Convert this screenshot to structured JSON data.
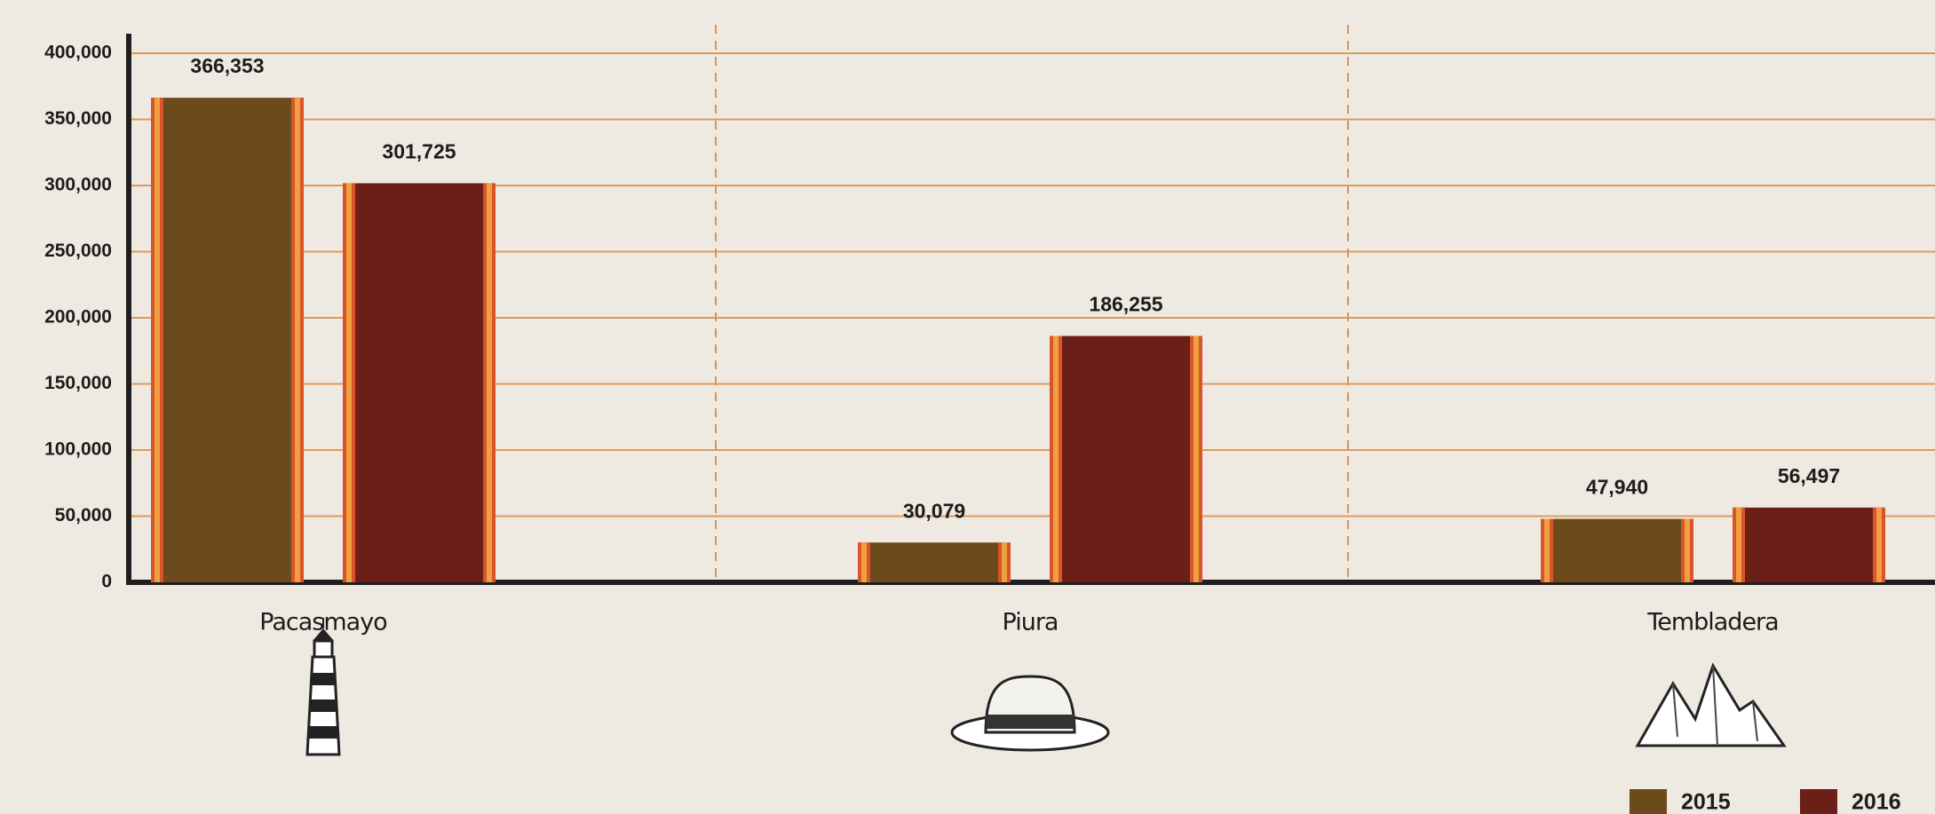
{
  "chart_data": {
    "type": "bar",
    "categories": [
      "Pacasmayo",
      "Piura",
      "Tembladera"
    ],
    "series": [
      {
        "name": "2015",
        "color": "#6b4a1c",
        "values": [
          366353,
          30079,
          47940
        ],
        "value_labels": [
          "366,353",
          "30,079",
          "47,940"
        ]
      },
      {
        "name": "2016",
        "color": "#6b1f17",
        "values": [
          301725,
          186255,
          56497
        ],
        "value_labels": [
          "301,725",
          "186,255",
          "56,497"
        ]
      }
    ],
    "ylim": [
      0,
      400000
    ],
    "yticks": [
      0,
      {
        "value": 50000,
        "label": "50,000"
      },
      {
        "value": 100000,
        "label": "100,000"
      },
      {
        "value": 150000,
        "label": "150,000"
      },
      {
        "value": 200000,
        "label": "200,000"
      },
      {
        "value": 250000,
        "label": "250,000"
      },
      {
        "value": 300000,
        "label": "300,000"
      },
      {
        "value": 350000,
        "label": "350,000"
      },
      {
        "value": 400000,
        "label": "400,000"
      }
    ],
    "grid": true,
    "legend": "bottom-right"
  }
}
